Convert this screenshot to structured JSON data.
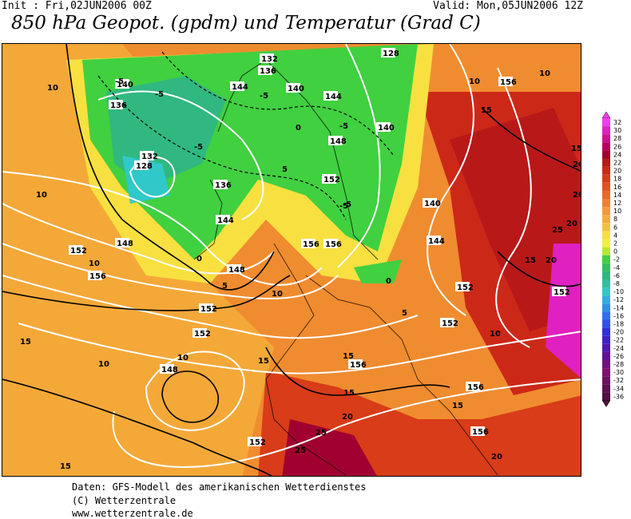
{
  "header": {
    "init": "Init : Fri,02JUN2006 00Z",
    "valid": "Valid: Mon,05JUN2006 12Z",
    "title": "850 hPa Geopot. (gpdm) und Temperatur (Grad C)"
  },
  "footer": {
    "line1": "Daten: GFS-Modell des amerikanischen Wetterdienstes",
    "line2": "(C) Wetterzentrale",
    "line3": "www.wetterzentrale.de"
  },
  "legend": {
    "values": [
      "32",
      "30",
      "28",
      "26",
      "24",
      "22",
      "20",
      "18",
      "16",
      "14",
      "12",
      "10",
      "8",
      "6",
      "4",
      "2",
      "0",
      "-2",
      "-4",
      "-6",
      "-8",
      "-10",
      "-12",
      "-14",
      "-16",
      "-18",
      "-20",
      "-22",
      "-24",
      "-26",
      "-28",
      "-30",
      "-32",
      "-34",
      "-36"
    ],
    "colors": [
      "#f03cf0",
      "#e020c0",
      "#d01090",
      "#b80060",
      "#a00030",
      "#b81818",
      "#cc2818",
      "#d83c18",
      "#e45020",
      "#ec6828",
      "#f08030",
      "#f49838",
      "#f4ac38",
      "#f4c040",
      "#f8e040",
      "#f0f040",
      "#b8e830",
      "#40d040",
      "#30c060",
      "#30b880",
      "#30c0a0",
      "#30c8c8",
      "#30b0e0",
      "#3090e8",
      "#3070f0",
      "#3050f0",
      "#3030e0",
      "#4020c8",
      "#5018b0",
      "#601098",
      "#701080",
      "#801070",
      "#701060",
      "#601050",
      "#501040"
    ]
  },
  "map": {
    "geopotential_labels": [
      "132",
      "128",
      "136",
      "140",
      "144",
      "140",
      "144",
      "136",
      "140",
      "128",
      "132",
      "136",
      "144",
      "148",
      "152",
      "156",
      "156",
      "148",
      "152",
      "152",
      "156",
      "148",
      "152",
      "156",
      "156",
      "152",
      "140",
      "144",
      "156",
      "148",
      "152",
      "152",
      "156",
      "152"
    ],
    "temperature_labels": [
      "10",
      "-5",
      "-5",
      "-5",
      "-5",
      "0",
      "-5",
      "-5",
      "5",
      "10",
      "10",
      "10",
      "15",
      "20",
      "15",
      "20",
      "20",
      "25",
      "15",
      "10",
      "15",
      "10",
      "5",
      "0",
      "-5",
      "10",
      "15",
      "10",
      "15",
      "15",
      "20",
      "25",
      "15",
      "25",
      "20",
      "20",
      "0",
      "5",
      "10",
      "15"
    ]
  }
}
